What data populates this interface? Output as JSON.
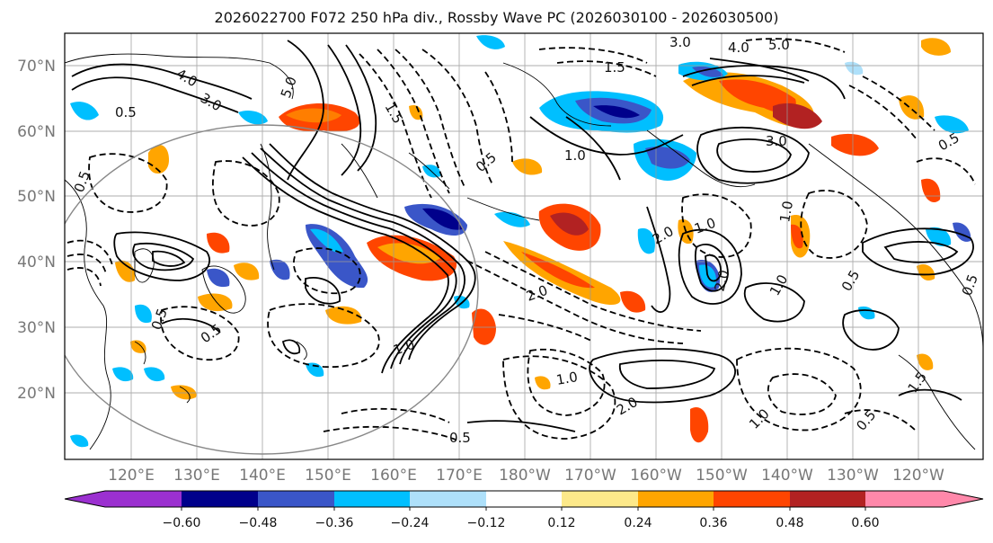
{
  "title": "2026022700 F072 250 hPa div., Rossby Wave PC (2026030100 - 2026030500)",
  "latitudes": [
    "70°N",
    "60°N",
    "50°N",
    "40°N",
    "30°N",
    "20°N"
  ],
  "longitudes": [
    "120°E",
    "130°E",
    "140°E",
    "150°E",
    "160°E",
    "170°E",
    "180°W",
    "170°W",
    "160°W",
    "150°W",
    "140°W",
    "130°W",
    "120°W"
  ],
  "colorbar": {
    "colors": [
      "#9b30d0",
      "#00008b",
      "#3a56c8",
      "#00bfff",
      "#aee0fa",
      "#ffffff",
      "#fde98a",
      "#ffa500",
      "#ff4500",
      "#b22222",
      "#ff88aa"
    ],
    "ticks": [
      "−0.60",
      "−0.48",
      "−0.36",
      "−0.24",
      "−0.12",
      "0.12",
      "0.24",
      "0.36",
      "0.48",
      "0.60"
    ]
  },
  "contour_labels": [
    "4.0",
    "3.0",
    "0.5",
    "5.0",
    "1.5",
    "3.0",
    "4.0",
    "5.0",
    "1.5",
    "1.0",
    "0.5",
    "2.0",
    "1.0",
    "3.0",
    "2.0",
    "1.0",
    "2.0",
    "0.5",
    "1.0",
    "0.5",
    "0.5",
    "0.5",
    "1.0",
    "2.0",
    "1.0",
    "0.5",
    "1.0",
    "0.5",
    "0.5",
    "1.5",
    "0.5"
  ]
}
